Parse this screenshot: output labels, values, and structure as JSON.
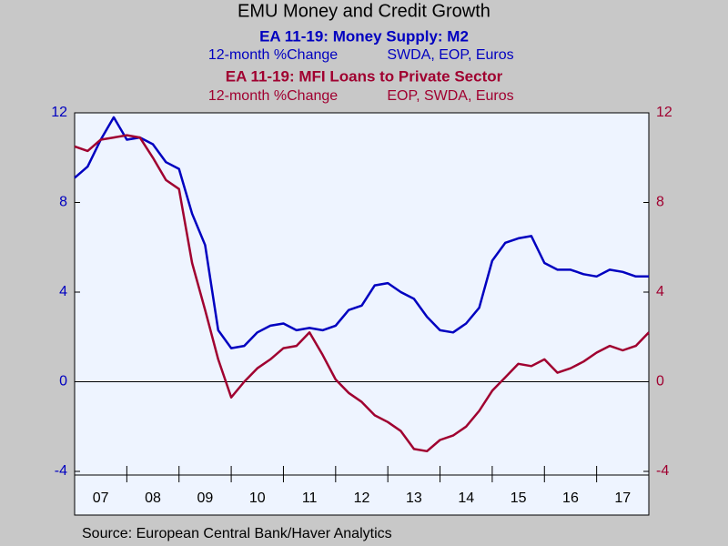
{
  "chart_data": {
    "type": "line",
    "title": "EMU Money and Credit Growth",
    "source": "Source:  European Central Bank/Haver Analytics",
    "x": [
      2007,
      2007.25,
      2007.5,
      2007.75,
      2008,
      2008.25,
      2008.5,
      2008.75,
      2009,
      2009.25,
      2009.5,
      2009.75,
      2010,
      2010.25,
      2010.5,
      2010.75,
      2011,
      2011.25,
      2011.5,
      2011.75,
      2012,
      2012.25,
      2012.5,
      2012.75,
      2013,
      2013.25,
      2013.5,
      2013.75,
      2014,
      2014.25,
      2014.5,
      2014.75,
      2015,
      2015.25,
      2015.5,
      2015.75,
      2016,
      2016.25,
      2016.5,
      2016.75,
      2017,
      2017.25,
      2017.5,
      2017.75,
      2018
    ],
    "xlim": [
      2007,
      2018
    ],
    "xticks": [
      {
        "value": 2007.5,
        "label": "07"
      },
      {
        "value": 2008.5,
        "label": "08"
      },
      {
        "value": 2009.5,
        "label": "09"
      },
      {
        "value": 2010.5,
        "label": "10"
      },
      {
        "value": 2011.5,
        "label": "11"
      },
      {
        "value": 2012.5,
        "label": "12"
      },
      {
        "value": 2013.5,
        "label": "13"
      },
      {
        "value": 2014.5,
        "label": "14"
      },
      {
        "value": 2015.5,
        "label": "15"
      },
      {
        "value": 2016.5,
        "label": "16"
      },
      {
        "value": 2017.5,
        "label": "17"
      }
    ],
    "ylim": [
      -4,
      12
    ],
    "yticks": [
      -4,
      0,
      4,
      8,
      12
    ],
    "y2lim": [
      -4,
      12
    ],
    "y2ticks": [
      -4,
      0,
      4,
      8,
      12
    ],
    "zero_line": true,
    "series": [
      {
        "name": "EA 11-19: Money Supply: M2",
        "units": "12-month %Change",
        "notes": "SWDA, EOP, Euros",
        "color": "#0000c0",
        "axis": "y",
        "values": [
          9.1,
          9.6,
          10.8,
          11.8,
          10.8,
          10.9,
          10.6,
          9.8,
          9.5,
          7.5,
          6.1,
          2.3,
          1.5,
          1.6,
          2.2,
          2.5,
          2.6,
          2.3,
          2.4,
          2.3,
          2.5,
          3.2,
          3.4,
          4.3,
          4.4,
          4.0,
          3.7,
          2.9,
          2.3,
          2.2,
          2.6,
          3.3,
          5.4,
          6.2,
          6.4,
          6.5,
          5.3,
          5.0,
          5.0,
          4.8,
          4.7,
          5.0,
          4.9,
          4.7,
          4.7
        ]
      },
      {
        "name": "EA 11-19: MFI Loans to Private Sector",
        "units": "12-month %Change",
        "notes": "EOP, SWDA, Euros",
        "color": "#a00030",
        "axis": "y2",
        "values": [
          10.5,
          10.3,
          10.8,
          10.9,
          11.0,
          10.9,
          10.0,
          9.0,
          8.6,
          5.3,
          3.2,
          1.0,
          -0.7,
          0.0,
          0.6,
          1.0,
          1.5,
          1.6,
          2.2,
          1.2,
          0.1,
          -0.5,
          -0.9,
          -1.5,
          -1.8,
          -2.2,
          -3.0,
          -3.1,
          -2.6,
          -2.4,
          -2.0,
          -1.3,
          -0.4,
          0.2,
          0.8,
          0.7,
          1.0,
          0.4,
          0.6,
          0.9,
          1.3,
          1.6,
          1.4,
          1.6,
          2.2
        ]
      }
    ]
  }
}
